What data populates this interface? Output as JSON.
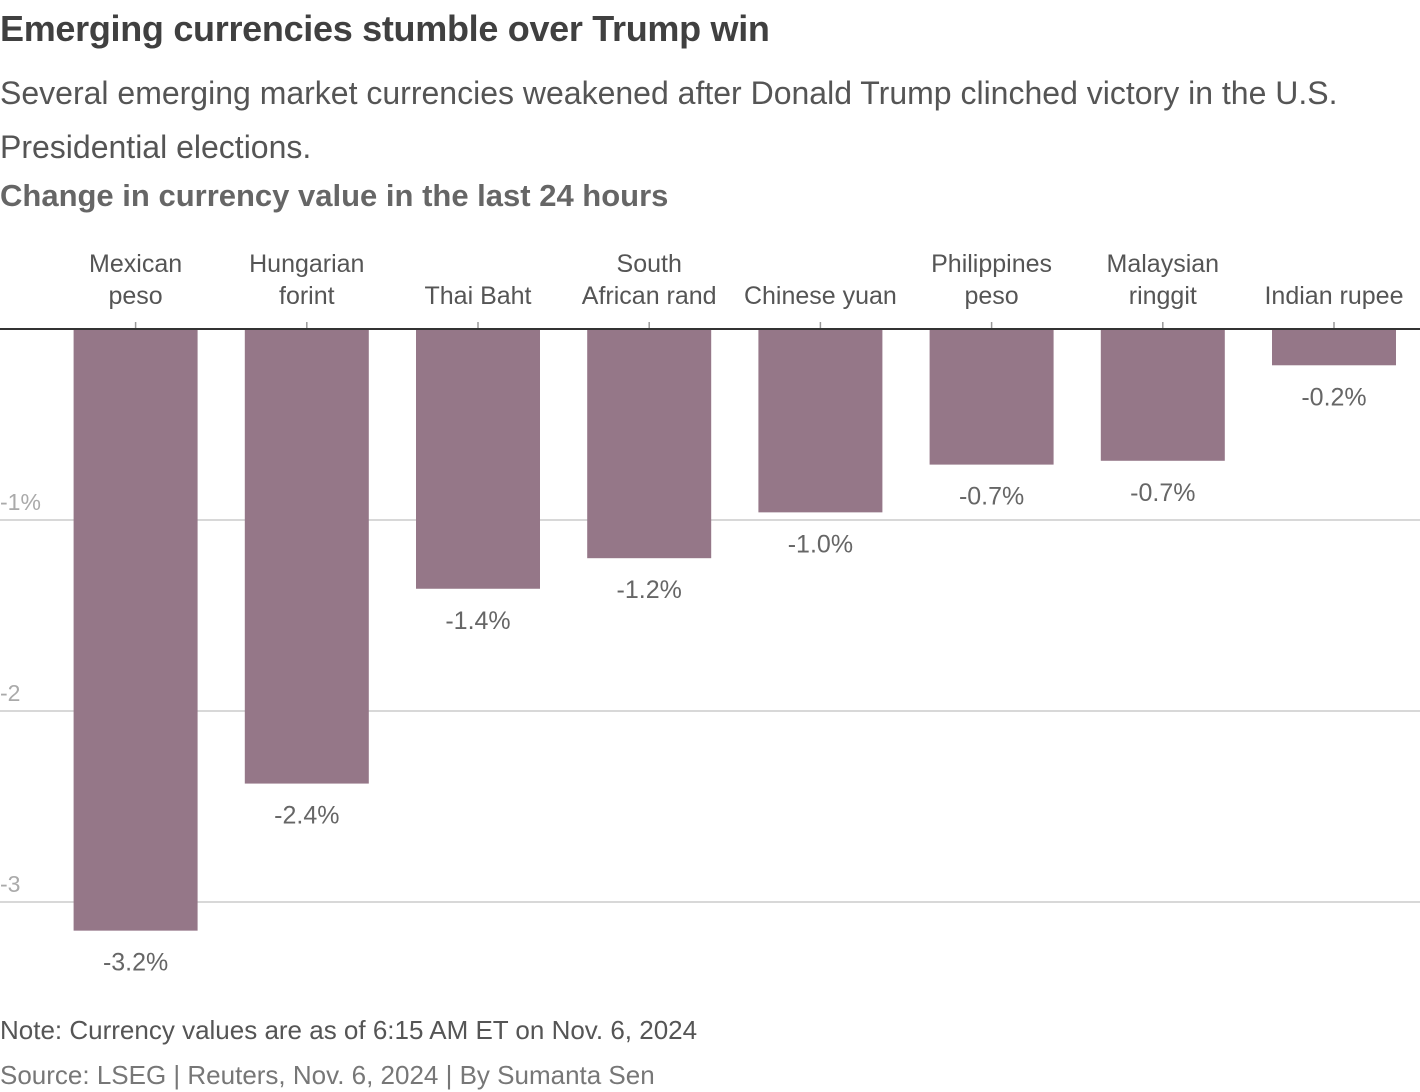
{
  "header": {
    "title": "Emerging currencies stumble over Trump win",
    "subtitle": "Several emerging market currencies weakened after Donald Trump clinched victory in the U.S. Presidential elections.",
    "chart_title": "Change in currency value in the last 24 hours"
  },
  "footer": {
    "note": "Note: Currency values are as of 6:15 AM ET on Nov. 6, 2024",
    "source": "Source: LSEG | Reuters, Nov. 6, 2024 | By Sumanta Sen"
  },
  "colors": {
    "bar": "#957788",
    "grid": "#cccccc",
    "axis": "#333333",
    "label": "#555555",
    "value_label": "#666666",
    "tick_label": "#aaaaaa"
  },
  "chart_data": {
    "type": "bar",
    "title": "Change in currency value in the last 24 hours",
    "categories": [
      [
        "Mexican",
        "peso"
      ],
      [
        "Hungarian",
        "forint"
      ],
      [
        "Thai Baht"
      ],
      [
        "South",
        "African rand"
      ],
      [
        "Chinese yuan"
      ],
      [
        "Philippines",
        "peso"
      ],
      [
        "Malaysian",
        "ringgit"
      ],
      [
        "Indian rupee"
      ]
    ],
    "values": [
      -3.15,
      -2.38,
      -1.36,
      -1.2,
      -0.96,
      -0.71,
      -0.69,
      -0.19
    ],
    "value_labels": [
      "-3.2%",
      "-2.4%",
      "-1.4%",
      "-1.2%",
      "-1.0%",
      "-0.7%",
      "-0.7%",
      "-0.2%"
    ],
    "y_ticks": [
      {
        "value": -1,
        "label": "-1%"
      },
      {
        "value": -2,
        "label": "-2"
      },
      {
        "value": -3,
        "label": "-3"
      }
    ],
    "ylim": [
      -3.3,
      0
    ],
    "xlabel": "",
    "ylabel": "",
    "grid": true
  }
}
